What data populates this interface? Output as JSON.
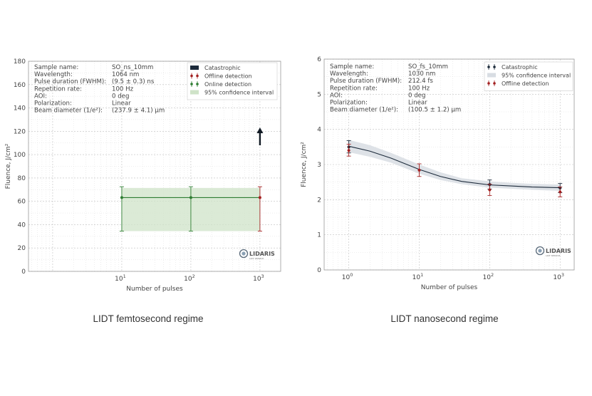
{
  "colors": {
    "green": "#2e7d32",
    "band_green": "#cfe3c8",
    "red": "#a32020",
    "navy": "#1c2a3a",
    "band_grey": "#d8dde3",
    "grid": "#bfbfbf",
    "frame": "#999999"
  },
  "legend_common": {
    "catastrophic": "Catastrophic",
    "offline": "Offline detection",
    "online": "Online detection",
    "ci": "95% confidence interval"
  },
  "logo": {
    "name": "LIDARIS",
    "sub": "LIDT SERVICE"
  },
  "chart_data": [
    {
      "id": "left",
      "type": "line",
      "caption": "LIDT femtosecond regime",
      "xlabel": "Number of pulses",
      "ylabel": "Fluence, J/cm²",
      "x_scale": "log",
      "xlim_log10": [
        -0.35,
        3.3
      ],
      "x_ticks": [
        {
          "label": "10",
          "sup": "1",
          "value": 10
        },
        {
          "label": "10",
          "sup": "2",
          "value": 100
        },
        {
          "label": "10",
          "sup": "3",
          "value": 1000
        }
      ],
      "ylim": [
        0,
        180
      ],
      "y_ticks": [
        0,
        20,
        40,
        60,
        80,
        100,
        120,
        140,
        160,
        180
      ],
      "info_labels": [
        "Sample name:",
        "Wavelength:",
        "Pulse duration (FWHM):",
        "Repetition rate:",
        "AOI:",
        "Polarization:",
        "Beam diameter (1/e²):"
      ],
      "info_values": [
        "SO_ns_10mm",
        "1064 nm",
        "(9.5 ± 0.3) ns",
        "100 Hz",
        "0 deg",
        "Linear",
        "(237.9 ± 4.1) µm"
      ],
      "legend": [
        "catastrophic",
        "offline",
        "online",
        "ci"
      ],
      "fit": {
        "x": [
          10,
          100,
          1000
        ],
        "y": [
          63.2,
          63.2,
          63.2
        ]
      },
      "band": {
        "x": [
          10,
          1000
        ],
        "lower": [
          34.5,
          34.5
        ],
        "upper": [
          71.5,
          71.5
        ]
      },
      "points": [
        {
          "x": 10,
          "y": 63.2,
          "low": 34.5,
          "high": 72.5,
          "kind": "online"
        },
        {
          "x": 100,
          "y": 63.2,
          "low": 34.5,
          "high": 72.5,
          "kind": "online"
        },
        {
          "x": 1000,
          "y": 63.2,
          "low": 34.5,
          "high": 72.5,
          "kind": "offline"
        }
      ],
      "arrow": {
        "x": 1000,
        "y_from": 108,
        "y_to": 122
      }
    },
    {
      "id": "right",
      "type": "line",
      "caption": "LIDT nanosecond regime",
      "xlabel": "Number of pulses",
      "ylabel": "Fluence, J/cm²",
      "x_scale": "log",
      "xlim_log10": [
        -0.35,
        3.2
      ],
      "x_ticks": [
        {
          "label": "10",
          "sup": "0",
          "value": 1
        },
        {
          "label": "10",
          "sup": "1",
          "value": 10
        },
        {
          "label": "10",
          "sup": "2",
          "value": 100
        },
        {
          "label": "10",
          "sup": "3",
          "value": 1000
        }
      ],
      "ylim": [
        0,
        6
      ],
      "y_ticks": [
        0,
        1,
        2,
        3,
        4,
        5,
        6
      ],
      "info_labels": [
        "Sample name:",
        "Wavelength:",
        "Pulse duration (FWHM):",
        "Repetition rate:",
        "AOI:",
        "Polarization:",
        "Beam diameter (1/e²):"
      ],
      "info_values": [
        "SO_fs_10mm",
        "1030 nm",
        "212.4 fs",
        "100 Hz",
        "0 deg",
        "Linear",
        "(100.5 ± 1.2) µm"
      ],
      "legend": [
        "catastrophic_pt",
        "ci",
        "offline"
      ],
      "fit": {
        "x": [
          1,
          2,
          4,
          10,
          20,
          40,
          100,
          200,
          400,
          1000
        ],
        "y": [
          3.52,
          3.38,
          3.18,
          2.86,
          2.66,
          2.52,
          2.42,
          2.39,
          2.36,
          2.34
        ]
      },
      "band": {
        "x": [
          1,
          2,
          4,
          10,
          20,
          40,
          100,
          200,
          400,
          1000
        ],
        "lower": [
          3.35,
          3.22,
          3.05,
          2.74,
          2.56,
          2.44,
          2.34,
          2.31,
          2.28,
          2.25
        ],
        "upper": [
          3.7,
          3.55,
          3.33,
          3.0,
          2.78,
          2.61,
          2.52,
          2.48,
          2.45,
          2.43
        ]
      },
      "points": [
        {
          "x": 1,
          "y": 3.5,
          "low": 3.33,
          "high": 3.68,
          "kind": "catastrophic"
        },
        {
          "x": 1,
          "y": 3.4,
          "low": 3.24,
          "high": 3.58,
          "kind": "offline"
        },
        {
          "x": 10,
          "y": 2.84,
          "low": 2.66,
          "high": 3.02,
          "kind": "offline"
        },
        {
          "x": 100,
          "y": 2.43,
          "low": 2.3,
          "high": 2.56,
          "kind": "catastrophic"
        },
        {
          "x": 100,
          "y": 2.28,
          "low": 2.12,
          "high": 2.44,
          "kind": "offline"
        },
        {
          "x": 1000,
          "y": 2.33,
          "low": 2.2,
          "high": 2.46,
          "kind": "catastrophic"
        },
        {
          "x": 1000,
          "y": 2.22,
          "low": 2.08,
          "high": 2.36,
          "kind": "offline"
        }
      ]
    }
  ]
}
